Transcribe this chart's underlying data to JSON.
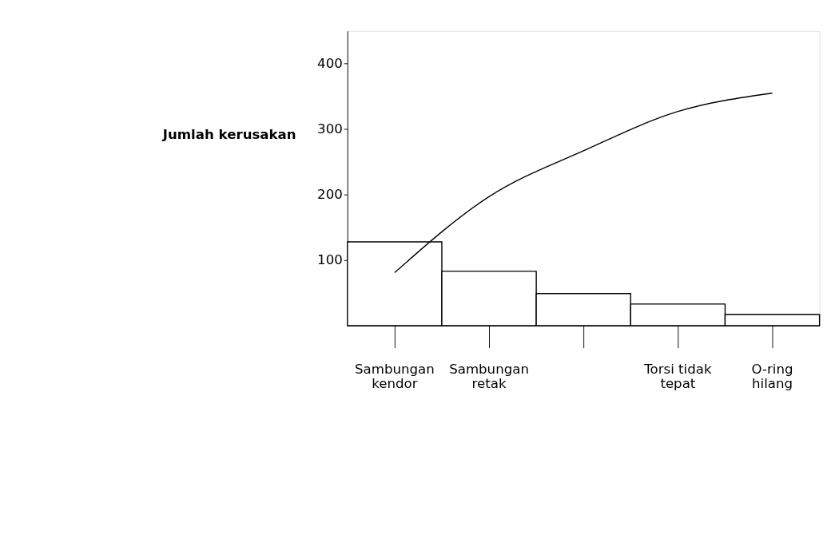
{
  "chart_data": {
    "type": "bar",
    "ylabel": "Jumlah kerusakan",
    "categories": [
      "Sambungan\nkendor",
      "Sambungan\nretak",
      null,
      "Torsi tidak\ntepat",
      "O-ring\nhilang"
    ],
    "series": [
      {
        "color": "#ffffff",
        "values": [
          128,
          83,
          49,
          33,
          17
        ]
      },
      {
        "type": "line",
        "color": "#000000",
        "values": [
          81,
          197,
          267,
          327,
          355
        ]
      }
    ],
    "ylim": [
      0,
      450
    ],
    "yticks": [
      100,
      200,
      300,
      400
    ],
    "grid": false,
    "marker": "none",
    "line_style": "solid"
  }
}
